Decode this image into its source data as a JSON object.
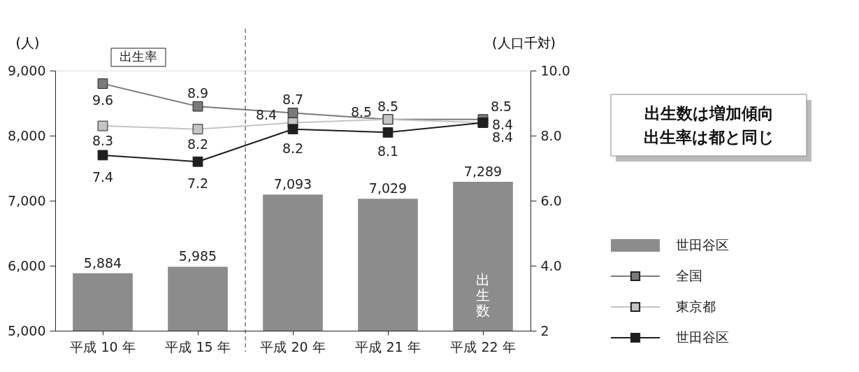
{
  "chart_data": {
    "type": "bar",
    "categories": [
      "平成 10 年",
      "平成 15 年",
      "平成 20 年",
      "平成 21 年",
      "平成 22 年"
    ],
    "ylabel": "(人)",
    "y2label": "(人口千対)",
    "ylim": [
      5000,
      9000
    ],
    "yticks": [
      {
        "value": 5000,
        "label": "5,000"
      },
      {
        "value": 6000,
        "label": "6,000"
      },
      {
        "value": 7000,
        "label": "7,000"
      },
      {
        "value": 8000,
        "label": "8,000"
      },
      {
        "value": 9000,
        "label": "9,000"
      }
    ],
    "y2lim": [
      2,
      10
    ],
    "y2ticks": [
      2,
      {
        "value": 4,
        "label": "4.0"
      },
      {
        "value": 6,
        "label": "6.0"
      },
      {
        "value": 8,
        "label": "8.0"
      },
      {
        "value": 10,
        "label": "10.0"
      }
    ],
    "series": [
      {
        "name": "世田谷区",
        "color": "#8c8c8c",
        "values": [
          5884,
          5985,
          7093,
          7029,
          7289
        ],
        "value_labels": [
          "5,884",
          "5,985",
          "7,093",
          "7,029",
          "7,289"
        ]
      },
      {
        "name": "全国",
        "type": "line",
        "axis": "y2",
        "color": "#7a7a7a",
        "values": [
          9.6,
          8.9,
          8.7,
          8.5,
          8.5
        ]
      },
      {
        "name": "東京都",
        "type": "line",
        "axis": "y2",
        "color": "#c4c4c4",
        "values": [
          8.3,
          8.2,
          8.4,
          8.5,
          8.4
        ]
      },
      {
        "name": "世田谷区",
        "type": "line",
        "axis": "y2",
        "color": "#1e1e1e",
        "values": [
          7.4,
          7.2,
          8.2,
          8.1,
          8.4
        ]
      }
    ],
    "annotations": [
      "出生率",
      "出生数",
      "出生数は増加傾向",
      "出生率は都と同じ"
    ],
    "data_labels": true,
    "marker": "square",
    "legend": "right",
    "grid": false
  }
}
